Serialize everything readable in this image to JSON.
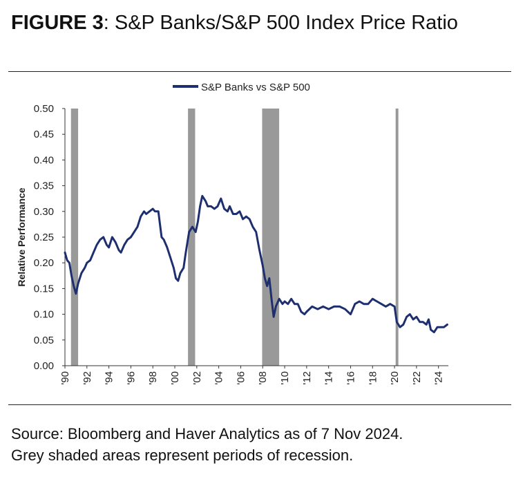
{
  "figure": {
    "label": "FIGURE 3",
    "title": ": S&P Banks/S&P 500 Index Price Ratio"
  },
  "source_lines": [
    "Source: Bloomberg and Haver Analytics as of 7 Nov 2024.",
    "Grey shaded areas represent periods of recession."
  ],
  "colors": {
    "series": "#1d2f6f",
    "recession": "#999999",
    "axis": "#333333"
  },
  "chart_data": {
    "type": "line",
    "title": "",
    "xlabel": "",
    "ylabel": "Relative Performance",
    "legend": {
      "placement": "top-center"
    },
    "grid": false,
    "xlim": [
      1990.0,
      2024.9
    ],
    "ylim": [
      0.0,
      0.5
    ],
    "yticks": [
      0.0,
      0.05,
      0.1,
      0.15,
      0.2,
      0.25,
      0.3,
      0.35,
      0.4,
      0.45,
      0.5
    ],
    "ytick_labels": [
      "0.00",
      "0.05",
      "0.10",
      "0.15",
      "0.20",
      "0.25",
      "0.30",
      "0.35",
      "0.40",
      "0.45",
      "0.50"
    ],
    "xticks": [
      1990,
      1992,
      1994,
      1996,
      1998,
      2000,
      2002,
      2004,
      2006,
      2008,
      2010,
      2012,
      2014,
      2016,
      2018,
      2020,
      2022,
      2024
    ],
    "xtick_labels": [
      "'90",
      "'92",
      "'94",
      "'96",
      "'98",
      "'00",
      "'02",
      "'04",
      "'06",
      "'08",
      "'10",
      "'12",
      "'14",
      "'16",
      "'18",
      "'20",
      "'22",
      "'24"
    ],
    "recessions": [
      {
        "start": 1990.55,
        "end": 1991.2
      },
      {
        "start": 2001.2,
        "end": 2001.85
      },
      {
        "start": 2007.95,
        "end": 2009.5
      },
      {
        "start": 2020.1,
        "end": 2020.35
      }
    ],
    "series": [
      {
        "name": "S&P Banks vs S&P 500",
        "x": [
          1990.0,
          1990.2,
          1990.4,
          1990.6,
          1990.8,
          1991.0,
          1991.2,
          1991.5,
          1991.8,
          1992.0,
          1992.3,
          1992.6,
          1992.9,
          1993.2,
          1993.5,
          1993.8,
          1994.0,
          1994.3,
          1994.6,
          1994.9,
          1995.1,
          1995.4,
          1995.7,
          1996.0,
          1996.3,
          1996.6,
          1996.9,
          1997.2,
          1997.4,
          1997.7,
          1998.0,
          1998.2,
          1998.5,
          1998.8,
          1999.0,
          1999.3,
          1999.6,
          1999.9,
          2000.1,
          2000.3,
          2000.5,
          2000.8,
          2001.0,
          2001.3,
          2001.6,
          2001.9,
          2002.1,
          2002.3,
          2002.5,
          2002.8,
          2003.0,
          2003.3,
          2003.6,
          2003.9,
          2004.2,
          2004.5,
          2004.8,
          2005.0,
          2005.3,
          2005.6,
          2005.9,
          2006.2,
          2006.5,
          2006.8,
          2007.1,
          2007.4,
          2007.7,
          2008.0,
          2008.2,
          2008.4,
          2008.6,
          2008.8,
          2009.0,
          2009.2,
          2009.5,
          2009.8,
          2010.0,
          2010.3,
          2010.6,
          2010.9,
          2011.2,
          2011.5,
          2011.8,
          2012.0,
          2012.5,
          2013.0,
          2013.5,
          2014.0,
          2014.5,
          2015.0,
          2015.5,
          2016.0,
          2016.4,
          2016.8,
          2017.2,
          2017.6,
          2018.0,
          2018.4,
          2018.8,
          2019.2,
          2019.6,
          2020.0,
          2020.2,
          2020.5,
          2020.8,
          2021.1,
          2021.4,
          2021.7,
          2022.0,
          2022.3,
          2022.6,
          2022.9,
          2023.1,
          2023.3,
          2023.6,
          2023.9,
          2024.2,
          2024.5,
          2024.8
        ],
        "values": [
          0.22,
          0.205,
          0.2,
          0.175,
          0.155,
          0.14,
          0.16,
          0.18,
          0.19,
          0.2,
          0.205,
          0.22,
          0.235,
          0.245,
          0.25,
          0.235,
          0.23,
          0.25,
          0.24,
          0.225,
          0.22,
          0.235,
          0.245,
          0.25,
          0.26,
          0.27,
          0.29,
          0.3,
          0.295,
          0.3,
          0.305,
          0.3,
          0.3,
          0.25,
          0.245,
          0.23,
          0.21,
          0.19,
          0.17,
          0.165,
          0.18,
          0.19,
          0.22,
          0.26,
          0.27,
          0.26,
          0.28,
          0.31,
          0.33,
          0.32,
          0.31,
          0.31,
          0.305,
          0.31,
          0.325,
          0.305,
          0.3,
          0.31,
          0.295,
          0.295,
          0.3,
          0.285,
          0.29,
          0.285,
          0.27,
          0.26,
          0.225,
          0.195,
          0.17,
          0.155,
          0.17,
          0.13,
          0.095,
          0.115,
          0.13,
          0.12,
          0.125,
          0.12,
          0.13,
          0.12,
          0.12,
          0.105,
          0.1,
          0.105,
          0.115,
          0.11,
          0.115,
          0.11,
          0.115,
          0.115,
          0.11,
          0.1,
          0.12,
          0.125,
          0.12,
          0.12,
          0.13,
          0.125,
          0.12,
          0.115,
          0.12,
          0.115,
          0.085,
          0.075,
          0.08,
          0.095,
          0.1,
          0.09,
          0.095,
          0.085,
          0.085,
          0.08,
          0.09,
          0.07,
          0.065,
          0.075,
          0.075,
          0.075,
          0.08
        ]
      }
    ]
  }
}
